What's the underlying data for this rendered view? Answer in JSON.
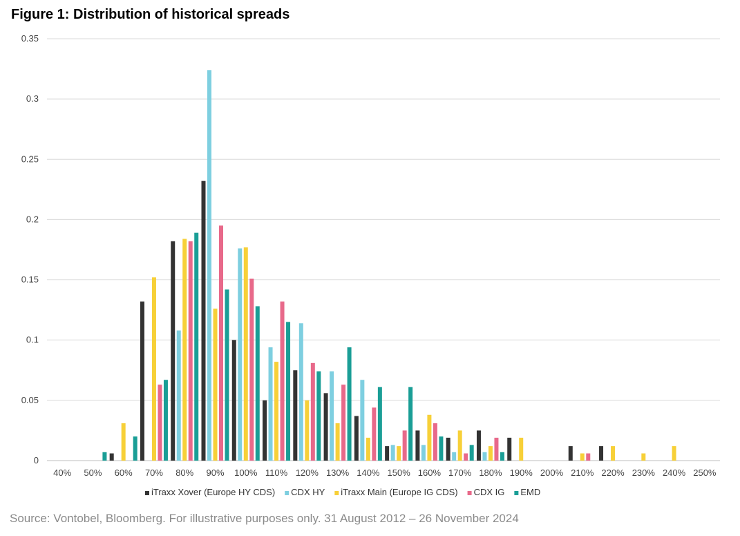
{
  "title": "Figure 1: Distribution of historical spreads",
  "source": "Source: Vontobel, Bloomberg. For illustrative purposes only. 31 August 2012 – 26 November 2024",
  "chart_data": {
    "type": "bar",
    "title": "Figure 1: Distribution of historical spreads",
    "xlabel": "",
    "ylabel": "",
    "ylim": [
      0,
      0.35
    ],
    "yticks": [
      "0",
      "0.05",
      "0.1",
      "0.15",
      "0.2",
      "0.25",
      "0.3",
      "0.35"
    ],
    "grid": true,
    "legend_position": "bottom",
    "categories": [
      "40%",
      "50%",
      "60%",
      "70%",
      "80%",
      "90%",
      "100%",
      "110%",
      "120%",
      "130%",
      "140%",
      "150%",
      "160%",
      "170%",
      "180%",
      "190%",
      "200%",
      "210%",
      "220%",
      "230%",
      "240%",
      "250%"
    ],
    "series": [
      {
        "name": "iTraxx Xover (Europe HY CDS)",
        "color": "#333333",
        "values": [
          0,
          0,
          0.006,
          0.132,
          0.182,
          0.232,
          0.1,
          0.05,
          0.075,
          0.056,
          0.037,
          0.012,
          0.025,
          0.019,
          0.025,
          0.019,
          0,
          0.012,
          0.012,
          0,
          0,
          0
        ]
      },
      {
        "name": "CDX HY",
        "color": "#7ecfe0",
        "values": [
          0,
          0,
          0,
          0,
          0.108,
          0.324,
          0.176,
          0.094,
          0.114,
          0.074,
          0.067,
          0.013,
          0.013,
          0.007,
          0.007,
          0,
          0,
          0,
          0,
          0,
          0,
          0
        ]
      },
      {
        "name": "iTraxx Main (Europe IG CDS)",
        "color": "#f7d038",
        "values": [
          0,
          0,
          0.031,
          0.152,
          0.184,
          0.126,
          0.177,
          0.082,
          0.05,
          0.031,
          0.019,
          0.012,
          0.038,
          0.025,
          0.012,
          0.019,
          0,
          0.006,
          0.012,
          0.006,
          0.012,
          0
        ]
      },
      {
        "name": "CDX IG",
        "color": "#e8698a",
        "values": [
          0,
          0,
          0,
          0.063,
          0.182,
          0.195,
          0.151,
          0.132,
          0.081,
          0.063,
          0.044,
          0.025,
          0.031,
          0.006,
          0.019,
          0,
          0,
          0.006,
          0,
          0,
          0,
          0
        ]
      },
      {
        "name": "EMD",
        "color": "#1a9e96",
        "values": [
          0,
          0.007,
          0.02,
          0.067,
          0.189,
          0.142,
          0.128,
          0.115,
          0.074,
          0.094,
          0.061,
          0.061,
          0.02,
          0.013,
          0.007,
          0,
          0,
          0,
          0,
          0,
          0,
          0
        ]
      }
    ]
  }
}
